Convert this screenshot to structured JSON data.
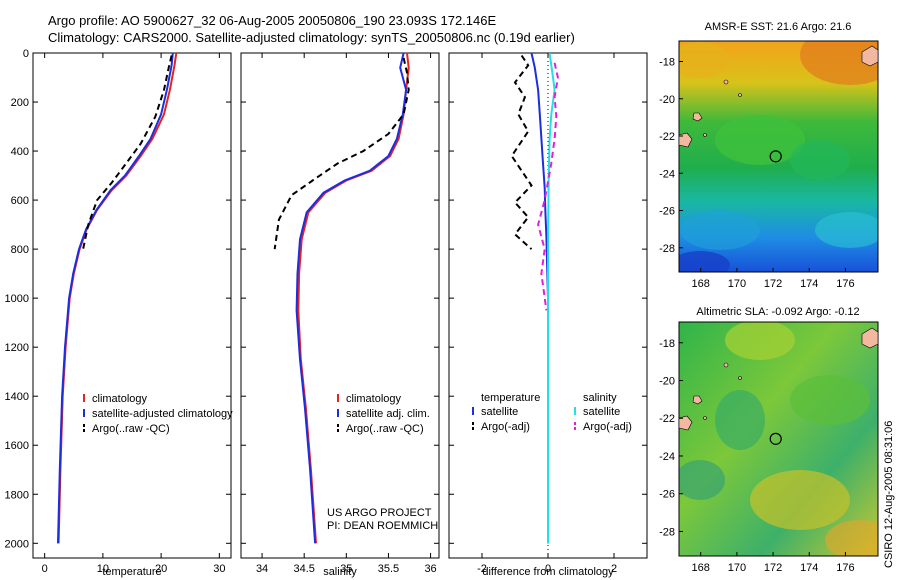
{
  "header": {
    "line1": "Argo profile: AO 5900627_32 06-Aug-2005 20050806_190 23.093S 172.146E",
    "line2": "Climatology: CARS2000. Satellite-adjusted climatology: synTS_20050806.nc (0.19d earlier)"
  },
  "side_label": "CSIRO 12-Aug-2005 08:31:06",
  "colors": {
    "climatology": "#e8231f",
    "satellite": "#1d2de0",
    "argo": "#000000",
    "sal_satellite": "#22e0e6",
    "sal_argo": "#e020d8"
  },
  "chart_data": [
    {
      "id": "temperature",
      "type": "line",
      "xlabel": "temperature",
      "xlim": [
        -2,
        32
      ],
      "xticks": [
        "0",
        "10",
        "20",
        "30"
      ],
      "xtick_values": [
        0,
        10,
        20,
        30
      ],
      "ylim": [
        2060,
        0
      ],
      "yticks": [
        "0",
        "200",
        "400",
        "600",
        "800",
        "1000",
        "1200",
        "1400",
        "1600",
        "1800",
        "2000"
      ],
      "ytick_values": [
        0,
        200,
        400,
        600,
        800,
        1000,
        1200,
        1400,
        1600,
        1800,
        2000
      ],
      "legend": [
        "climatology",
        "satellite-adjusted climatology",
        "Argo(..raw -QC)"
      ],
      "series": [
        {
          "name": "climatology",
          "style": "solid",
          "color": "#e8231f",
          "x": [
            22.6,
            22.3,
            21.5,
            20.5,
            18.5,
            16.5,
            14.0,
            11.5,
            9.0,
            7.2,
            6.0,
            5.0,
            4.3,
            3.6,
            3.1,
            2.7,
            2.4
          ],
          "y": [
            0,
            50,
            150,
            250,
            350,
            420,
            500,
            560,
            640,
            720,
            800,
            900,
            1000,
            1200,
            1400,
            1700,
            2000
          ]
        },
        {
          "name": "satellite-adjusted climatology",
          "style": "solid",
          "color": "#1d2de0",
          "x": [
            22.0,
            21.8,
            21.0,
            20.0,
            18.2,
            16.2,
            13.8,
            11.3,
            8.9,
            7.1,
            5.9,
            4.9,
            4.2,
            3.5,
            3.0,
            2.6,
            2.3
          ],
          "y": [
            0,
            50,
            150,
            250,
            350,
            420,
            500,
            560,
            640,
            720,
            800,
            900,
            1000,
            1200,
            1400,
            1700,
            2000
          ]
        },
        {
          "name": "Argo(..raw -QC)",
          "style": "dash",
          "color": "#000000",
          "x": [
            21.8,
            21.3,
            20.5,
            19.0,
            16.5,
            14.0,
            11.5,
            9.0,
            7.5,
            6.6
          ],
          "y": [
            10,
            60,
            150,
            260,
            370,
            450,
            530,
            600,
            700,
            800
          ]
        }
      ]
    },
    {
      "id": "salinity",
      "type": "line",
      "xlabel": "salinity",
      "xlim": [
        33.75,
        36.1
      ],
      "xticks": [
        "34",
        "34.5",
        "35",
        "35.5",
        "36"
      ],
      "xtick_values": [
        34,
        34.5,
        35,
        35.5,
        36
      ],
      "ylim": [
        2060,
        0
      ],
      "legend": [
        "climatology",
        "satellite adj. clim.",
        "Argo(..raw -QC)"
      ],
      "annotation": [
        "US ARGO PROJECT",
        "PI: DEAN ROEMMICH"
      ],
      "series": [
        {
          "name": "climatology",
          "style": "solid",
          "color": "#e8231f",
          "x": [
            35.72,
            35.74,
            35.71,
            35.68,
            35.62,
            35.52,
            35.3,
            35.0,
            34.75,
            34.55,
            34.47,
            34.44,
            34.43,
            34.46,
            34.52,
            34.58,
            34.64
          ],
          "y": [
            0,
            60,
            150,
            250,
            350,
            420,
            480,
            520,
            570,
            650,
            760,
            900,
            1050,
            1250,
            1450,
            1700,
            2000
          ]
        },
        {
          "name": "satellite adj. clim.",
          "style": "solid",
          "color": "#1d2de0",
          "x": [
            35.68,
            35.64,
            35.71,
            35.67,
            35.6,
            35.5,
            35.28,
            34.98,
            34.73,
            34.53,
            34.45,
            34.42,
            34.41,
            34.45,
            34.51,
            34.57,
            34.63
          ],
          "y": [
            0,
            60,
            150,
            250,
            350,
            420,
            480,
            520,
            570,
            650,
            760,
            900,
            1050,
            1250,
            1450,
            1700,
            2000
          ]
        },
        {
          "name": "Argo(..raw -QC)",
          "style": "dash",
          "color": "#000000",
          "x": [
            35.68,
            35.72,
            35.74,
            35.68,
            35.5,
            35.2,
            34.9,
            34.6,
            34.35,
            34.2,
            34.15
          ],
          "y": [
            20,
            80,
            150,
            250,
            330,
            400,
            450,
            520,
            580,
            680,
            800
          ]
        }
      ]
    },
    {
      "id": "difference",
      "type": "line",
      "xlabel": "difference from climatology",
      "xlim": [
        -3.0,
        3.0
      ],
      "xticks": [
        "-2",
        "0",
        "2"
      ],
      "xtick_values": [
        -2,
        0,
        2
      ],
      "ylim": [
        2060,
        0
      ],
      "legend_temperature": {
        "title": "temperature",
        "items": [
          "satellite",
          "Argo(-adj)"
        ]
      },
      "legend_salinity": {
        "title": "salinity",
        "items": [
          "satellite",
          "Argo(-adj)"
        ]
      },
      "series": [
        {
          "name": "temperature satellite",
          "style": "solid",
          "color": "#1d2de0",
          "x": [
            -0.5,
            -0.4,
            -0.3,
            -0.25,
            -0.2,
            -0.15,
            -0.1,
            -0.08,
            -0.05,
            -0.03,
            0,
            0,
            0
          ],
          "y": [
            0,
            60,
            150,
            250,
            350,
            450,
            550,
            650,
            750,
            850,
            1000,
            1500,
            2000
          ]
        },
        {
          "name": "temperature Argo(-adj)",
          "style": "dash",
          "color": "#000000",
          "x": [
            -0.8,
            -0.6,
            -1.0,
            -0.7,
            -0.9,
            -0.6,
            -1.1,
            -0.8,
            -0.5,
            -1.0,
            -0.6,
            -1.0,
            -0.5
          ],
          "y": [
            10,
            50,
            120,
            180,
            250,
            320,
            420,
            480,
            540,
            610,
            670,
            740,
            800
          ]
        },
        {
          "name": "salinity satellite",
          "style": "solid",
          "color": "#22e0e6",
          "x": [
            0.05,
            0.1,
            0.15,
            0.2,
            0.1,
            0.05,
            0.02,
            0.0,
            0.0,
            0.0
          ],
          "y": [
            0,
            50,
            100,
            150,
            250,
            350,
            500,
            800,
            1400,
            2000
          ]
        },
        {
          "name": "salinity Argo(-adj)",
          "style": "dash",
          "color": "#e020d8",
          "x": [
            0.2,
            0.3,
            0.2,
            0.25,
            0.2,
            0.1,
            -0.1,
            -0.3,
            -0.1,
            -0.2,
            -0.05
          ],
          "y": [
            40,
            100,
            180,
            260,
            350,
            450,
            600,
            700,
            800,
            900,
            1050
          ]
        }
      ]
    },
    {
      "id": "sst_map",
      "type": "heatmap",
      "title": "AMSR-E SST: 21.6  Argo: 21.6",
      "xticks": [
        "168",
        "170",
        "172",
        "174",
        "176"
      ],
      "xtick_values": [
        168,
        170,
        172,
        174,
        176
      ],
      "yticks": [
        "-18",
        "-20",
        "-22",
        "-24",
        "-26",
        "-28"
      ],
      "ytick_values": [
        -18,
        -20,
        -22,
        -24,
        -26,
        -28
      ],
      "xlim": [
        166.8,
        177.8
      ],
      "ylim": [
        -29.3,
        -16.9
      ],
      "marker": {
        "lon": 172.146,
        "lat": -23.093
      }
    },
    {
      "id": "sla_map",
      "type": "heatmap",
      "title": "Altimetric SLA: -0.092  Argo: -0.12",
      "xticks": [
        "168",
        "170",
        "172",
        "174",
        "176"
      ],
      "xtick_values": [
        168,
        170,
        172,
        174,
        176
      ],
      "yticks": [
        "-18",
        "-20",
        "-22",
        "-24",
        "-26",
        "-28"
      ],
      "ytick_values": [
        -18,
        -20,
        -22,
        -24,
        -26,
        -28
      ],
      "xlim": [
        166.8,
        177.8
      ],
      "ylim": [
        -29.3,
        -16.9
      ],
      "marker": {
        "lon": 172.146,
        "lat": -23.093
      }
    }
  ]
}
